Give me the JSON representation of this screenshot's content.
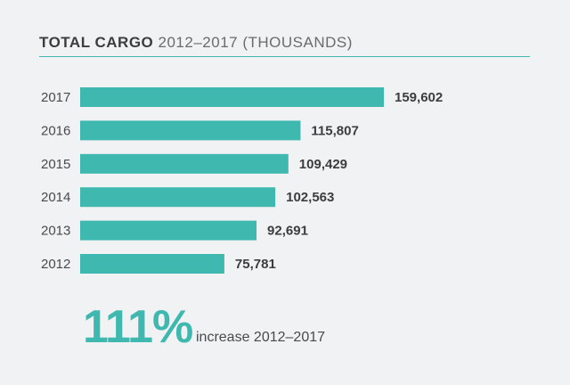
{
  "header": {
    "title_bold": "TOTAL CARGO",
    "title_light": "2012–2017 (THOUSANDS)"
  },
  "colors": {
    "bar": "#3fb8b0",
    "accent": "#3fb8b0",
    "text": "#4a4a4a",
    "background": "#f1f2f4"
  },
  "chart_data": {
    "type": "bar",
    "orientation": "horizontal",
    "title": "TOTAL CARGO 2012–2017 (THOUSANDS)",
    "categories": [
      "2017",
      "2016",
      "2015",
      "2014",
      "2013",
      "2012"
    ],
    "values": [
      159602,
      115807,
      109429,
      102563,
      92691,
      75781
    ],
    "value_labels": [
      "159,602",
      "115,807",
      "109,429",
      "102,563",
      "92,691",
      "75,781"
    ],
    "xlim": [
      0,
      159602
    ],
    "grid": false,
    "legend": "none"
  },
  "summary": {
    "stat": "111%",
    "caption": "increase 2012–2017"
  }
}
